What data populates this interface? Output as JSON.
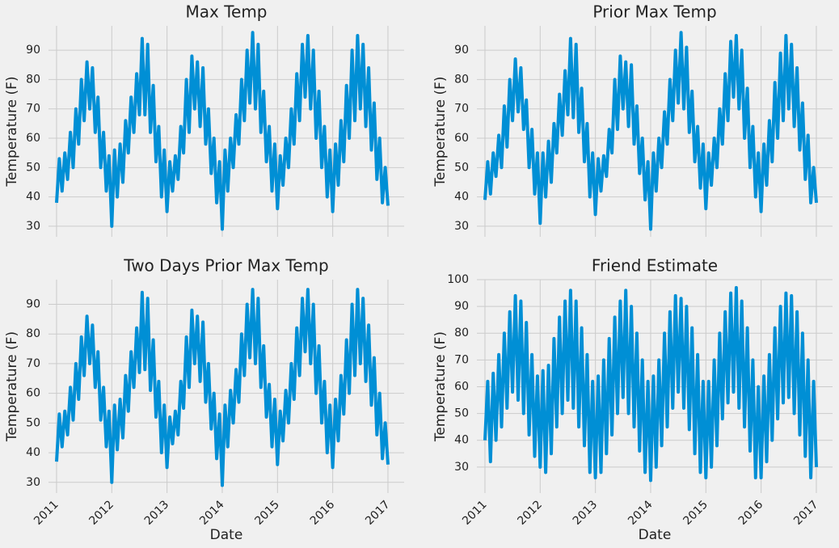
{
  "chart_data": [
    {
      "type": "line",
      "title": "Max Temp",
      "ylabel": "Temperature (F)",
      "x": [
        2011.0,
        2011.05,
        2011.1,
        2011.15,
        2011.2,
        2011.25,
        2011.3,
        2011.35,
        2011.4,
        2011.45,
        2011.5,
        2011.55,
        2011.6,
        2011.65,
        2011.7,
        2011.75,
        2011.8,
        2011.85,
        2011.9,
        2011.95,
        2012.0,
        2012.05,
        2012.1,
        2012.15,
        2012.2,
        2012.25,
        2012.3,
        2012.35,
        2012.4,
        2012.45,
        2012.5,
        2012.55,
        2012.6,
        2012.65,
        2012.7,
        2012.75,
        2012.8,
        2012.85,
        2012.9,
        2012.95,
        2013.0,
        2013.05,
        2013.1,
        2013.15,
        2013.2,
        2013.25,
        2013.3,
        2013.35,
        2013.4,
        2013.45,
        2013.5,
        2013.55,
        2013.6,
        2013.65,
        2013.7,
        2013.75,
        2013.8,
        2013.85,
        2013.9,
        2013.95,
        2014.0,
        2014.05,
        2014.1,
        2014.15,
        2014.2,
        2014.25,
        2014.3,
        2014.35,
        2014.4,
        2014.45,
        2014.5,
        2014.55,
        2014.6,
        2014.65,
        2014.7,
        2014.75,
        2014.8,
        2014.85,
        2014.9,
        2014.95,
        2015.0,
        2015.05,
        2015.1,
        2015.15,
        2015.2,
        2015.25,
        2015.3,
        2015.35,
        2015.4,
        2015.45,
        2015.5,
        2015.55,
        2015.6,
        2015.65,
        2015.7,
        2015.75,
        2015.8,
        2015.85,
        2015.9,
        2015.95,
        2016.0,
        2016.05,
        2016.1,
        2016.15,
        2016.2,
        2016.25,
        2016.3,
        2016.35,
        2016.4,
        2016.45,
        2016.5,
        2016.55,
        2016.6,
        2016.65,
        2016.7,
        2016.75,
        2016.8,
        2016.85,
        2016.9,
        2016.95,
        2017.0
      ],
      "series": [
        {
          "name": "Max Temp",
          "color": "#008fd5",
          "values": [
            38,
            53,
            42,
            55,
            46,
            62,
            50,
            70,
            58,
            80,
            66,
            86,
            70,
            84,
            62,
            74,
            50,
            62,
            42,
            54,
            30,
            56,
            40,
            58,
            45,
            66,
            55,
            74,
            62,
            82,
            68,
            94,
            68,
            92,
            62,
            78,
            52,
            64,
            40,
            56,
            35,
            52,
            42,
            54,
            46,
            64,
            55,
            80,
            62,
            88,
            70,
            86,
            64,
            84,
            58,
            70,
            48,
            60,
            38,
            52,
            29,
            56,
            42,
            60,
            50,
            68,
            58,
            80,
            66,
            90,
            72,
            96,
            70,
            92,
            62,
            76,
            52,
            64,
            42,
            58,
            36,
            54,
            44,
            60,
            50,
            70,
            58,
            82,
            66,
            92,
            74,
            95,
            70,
            90,
            60,
            76,
            50,
            64,
            40,
            56,
            35,
            58,
            44,
            66,
            52,
            78,
            60,
            90,
            66,
            95,
            70,
            92,
            64,
            84,
            56,
            72,
            46,
            60,
            38,
            50,
            37
          ]
        }
      ],
      "xlim": [
        2010.854,
        2017.293
      ],
      "xticks": [
        2011,
        2012,
        2013,
        2014,
        2015,
        2016,
        2017
      ],
      "ylim": [
        26.4,
        98.3
      ],
      "yticks": [
        30,
        40,
        50,
        60,
        70,
        80,
        90
      ],
      "grid": true
    },
    {
      "type": "line",
      "title": "Prior Max Temp",
      "ylabel": "Temperature (F)",
      "x": [
        2011.0,
        2011.05,
        2011.1,
        2011.15,
        2011.2,
        2011.25,
        2011.3,
        2011.35,
        2011.4,
        2011.45,
        2011.5,
        2011.55,
        2011.6,
        2011.65,
        2011.7,
        2011.75,
        2011.8,
        2011.85,
        2011.9,
        2011.95,
        2012.0,
        2012.05,
        2012.1,
        2012.15,
        2012.2,
        2012.25,
        2012.3,
        2012.35,
        2012.4,
        2012.45,
        2012.5,
        2012.55,
        2012.6,
        2012.65,
        2012.7,
        2012.75,
        2012.8,
        2012.85,
        2012.9,
        2012.95,
        2013.0,
        2013.05,
        2013.1,
        2013.15,
        2013.2,
        2013.25,
        2013.3,
        2013.35,
        2013.4,
        2013.45,
        2013.5,
        2013.55,
        2013.6,
        2013.65,
        2013.7,
        2013.75,
        2013.8,
        2013.85,
        2013.9,
        2013.95,
        2014.0,
        2014.05,
        2014.1,
        2014.15,
        2014.2,
        2014.25,
        2014.3,
        2014.35,
        2014.4,
        2014.45,
        2014.5,
        2014.55,
        2014.6,
        2014.65,
        2014.7,
        2014.75,
        2014.8,
        2014.85,
        2014.9,
        2014.95,
        2015.0,
        2015.05,
        2015.1,
        2015.15,
        2015.2,
        2015.25,
        2015.3,
        2015.35,
        2015.4,
        2015.45,
        2015.5,
        2015.55,
        2015.6,
        2015.65,
        2015.7,
        2015.75,
        2015.8,
        2015.85,
        2015.9,
        2015.95,
        2016.0,
        2016.05,
        2016.1,
        2016.15,
        2016.2,
        2016.25,
        2016.3,
        2016.35,
        2016.4,
        2016.45,
        2016.5,
        2016.55,
        2016.6,
        2016.65,
        2016.7,
        2016.75,
        2016.8,
        2016.85,
        2016.9,
        2016.95,
        2017.0
      ],
      "series": [
        {
          "name": "Prior Max Temp",
          "color": "#008fd5",
          "values": [
            39,
            52,
            41,
            55,
            47,
            61,
            50,
            71,
            57,
            80,
            66,
            87,
            69,
            84,
            63,
            73,
            50,
            63,
            41,
            55,
            31,
            55,
            40,
            59,
            45,
            65,
            55,
            75,
            61,
            83,
            68,
            94,
            67,
            92,
            62,
            77,
            52,
            65,
            40,
            55,
            34,
            53,
            42,
            54,
            47,
            63,
            55,
            80,
            63,
            88,
            70,
            86,
            64,
            85,
            58,
            71,
            48,
            60,
            39,
            52,
            29,
            55,
            42,
            60,
            50,
            69,
            58,
            80,
            66,
            90,
            72,
            96,
            70,
            91,
            62,
            76,
            52,
            64,
            43,
            58,
            36,
            55,
            44,
            60,
            50,
            70,
            58,
            82,
            66,
            93,
            74,
            95,
            70,
            90,
            60,
            77,
            50,
            64,
            40,
            55,
            35,
            58,
            44,
            66,
            52,
            79,
            60,
            89,
            66,
            95,
            70,
            92,
            64,
            84,
            56,
            72,
            46,
            61,
            38,
            50,
            38
          ]
        }
      ],
      "xlim": [
        2010.854,
        2017.293
      ],
      "xticks": [
        2011,
        2012,
        2013,
        2014,
        2015,
        2016,
        2017
      ],
      "ylim": [
        26.4,
        98.3
      ],
      "yticks": [
        30,
        40,
        50,
        60,
        70,
        80,
        90
      ],
      "grid": true
    },
    {
      "type": "line",
      "title": "Two Days Prior Max Temp",
      "ylabel": "Temperature (F)",
      "xlabel": "Date",
      "x": [
        2011.0,
        2011.05,
        2011.1,
        2011.15,
        2011.2,
        2011.25,
        2011.3,
        2011.35,
        2011.4,
        2011.45,
        2011.5,
        2011.55,
        2011.6,
        2011.65,
        2011.7,
        2011.75,
        2011.8,
        2011.85,
        2011.9,
        2011.95,
        2012.0,
        2012.05,
        2012.1,
        2012.15,
        2012.2,
        2012.25,
        2012.3,
        2012.35,
        2012.4,
        2012.45,
        2012.5,
        2012.55,
        2012.6,
        2012.65,
        2012.7,
        2012.75,
        2012.8,
        2012.85,
        2012.9,
        2012.95,
        2013.0,
        2013.05,
        2013.1,
        2013.15,
        2013.2,
        2013.25,
        2013.3,
        2013.35,
        2013.4,
        2013.45,
        2013.5,
        2013.55,
        2013.6,
        2013.65,
        2013.7,
        2013.75,
        2013.8,
        2013.85,
        2013.9,
        2013.95,
        2014.0,
        2014.05,
        2014.1,
        2014.15,
        2014.2,
        2014.25,
        2014.3,
        2014.35,
        2014.4,
        2014.45,
        2014.5,
        2014.55,
        2014.6,
        2014.65,
        2014.7,
        2014.75,
        2014.8,
        2014.85,
        2014.9,
        2014.95,
        2015.0,
        2015.05,
        2015.1,
        2015.15,
        2015.2,
        2015.25,
        2015.3,
        2015.35,
        2015.4,
        2015.45,
        2015.5,
        2015.55,
        2015.6,
        2015.65,
        2015.7,
        2015.75,
        2015.8,
        2015.85,
        2015.9,
        2015.95,
        2016.0,
        2016.05,
        2016.1,
        2016.15,
        2016.2,
        2016.25,
        2016.3,
        2016.35,
        2016.4,
        2016.45,
        2016.5,
        2016.55,
        2016.6,
        2016.65,
        2016.7,
        2016.75,
        2016.8,
        2016.85,
        2016.9,
        2016.95,
        2017.0
      ],
      "series": [
        {
          "name": "Two Days Prior Max Temp",
          "color": "#008fd5",
          "values": [
            37,
            53,
            42,
            54,
            46,
            62,
            51,
            70,
            58,
            79,
            66,
            86,
            70,
            83,
            62,
            74,
            51,
            62,
            42,
            54,
            30,
            56,
            41,
            58,
            45,
            66,
            54,
            74,
            62,
            82,
            67,
            94,
            68,
            92,
            61,
            78,
            52,
            64,
            40,
            56,
            35,
            52,
            43,
            54,
            46,
            64,
            55,
            79,
            62,
            88,
            70,
            86,
            64,
            84,
            57,
            70,
            48,
            60,
            38,
            53,
            29,
            56,
            42,
            61,
            50,
            68,
            57,
            80,
            66,
            90,
            72,
            95,
            70,
            92,
            62,
            76,
            52,
            63,
            42,
            58,
            36,
            54,
            44,
            61,
            50,
            70,
            58,
            82,
            66,
            92,
            74,
            95,
            70,
            90,
            60,
            76,
            50,
            64,
            40,
            56,
            35,
            58,
            44,
            66,
            53,
            78,
            60,
            90,
            66,
            95,
            70,
            92,
            64,
            83,
            56,
            72,
            46,
            60,
            38,
            50,
            36
          ]
        }
      ],
      "xlim": [
        2010.854,
        2017.293
      ],
      "xticks": [
        2011,
        2012,
        2013,
        2014,
        2015,
        2016,
        2017
      ],
      "ylim": [
        26.4,
        98.3
      ],
      "yticks": [
        30,
        40,
        50,
        60,
        70,
        80,
        90
      ],
      "grid": true
    },
    {
      "type": "line",
      "title": "Friend Estimate",
      "ylabel": "Temperature (F)",
      "xlabel": "Date",
      "x": [
        2011.0,
        2011.05,
        2011.1,
        2011.15,
        2011.2,
        2011.25,
        2011.3,
        2011.35,
        2011.4,
        2011.45,
        2011.5,
        2011.55,
        2011.6,
        2011.65,
        2011.7,
        2011.75,
        2011.8,
        2011.85,
        2011.9,
        2011.95,
        2012.0,
        2012.05,
        2012.1,
        2012.15,
        2012.2,
        2012.25,
        2012.3,
        2012.35,
        2012.4,
        2012.45,
        2012.5,
        2012.55,
        2012.6,
        2012.65,
        2012.7,
        2012.75,
        2012.8,
        2012.85,
        2012.9,
        2012.95,
        2013.0,
        2013.05,
        2013.1,
        2013.15,
        2013.2,
        2013.25,
        2013.3,
        2013.35,
        2013.4,
        2013.45,
        2013.5,
        2013.55,
        2013.6,
        2013.65,
        2013.7,
        2013.75,
        2013.8,
        2013.85,
        2013.9,
        2013.95,
        2014.0,
        2014.05,
        2014.1,
        2014.15,
        2014.2,
        2014.25,
        2014.3,
        2014.35,
        2014.4,
        2014.45,
        2014.5,
        2014.55,
        2014.6,
        2014.65,
        2014.7,
        2014.75,
        2014.8,
        2014.85,
        2014.9,
        2014.95,
        2015.0,
        2015.05,
        2015.1,
        2015.15,
        2015.2,
        2015.25,
        2015.3,
        2015.35,
        2015.4,
        2015.45,
        2015.5,
        2015.55,
        2015.6,
        2015.65,
        2015.7,
        2015.75,
        2015.8,
        2015.85,
        2015.9,
        2015.95,
        2016.0,
        2016.05,
        2016.1,
        2016.15,
        2016.2,
        2016.25,
        2016.3,
        2016.35,
        2016.4,
        2016.45,
        2016.5,
        2016.55,
        2016.6,
        2016.65,
        2016.7,
        2016.75,
        2016.8,
        2016.85,
        2016.9,
        2016.95,
        2017.0
      ],
      "series": [
        {
          "name": "Friend Estimate",
          "color": "#008fd5",
          "values": [
            40,
            62,
            32,
            65,
            40,
            72,
            45,
            80,
            52,
            88,
            58,
            94,
            55,
            92,
            50,
            84,
            42,
            72,
            34,
            64,
            30,
            66,
            28,
            68,
            35,
            78,
            45,
            86,
            50,
            92,
            55,
            96,
            52,
            92,
            45,
            82,
            38,
            72,
            28,
            62,
            26,
            64,
            28,
            70,
            35,
            78,
            42,
            86,
            50,
            92,
            56,
            96,
            50,
            90,
            45,
            80,
            36,
            70,
            28,
            62,
            25,
            64,
            30,
            70,
            38,
            80,
            45,
            88,
            52,
            94,
            58,
            93,
            52,
            90,
            44,
            82,
            35,
            72,
            28,
            62,
            26,
            62,
            30,
            70,
            38,
            80,
            48,
            88,
            54,
            95,
            58,
            97,
            52,
            92,
            45,
            82,
            36,
            70,
            26,
            60,
            26,
            64,
            32,
            72,
            40,
            82,
            48,
            90,
            54,
            95,
            56,
            94,
            50,
            88,
            42,
            80,
            34,
            70,
            26,
            62,
            30
          ]
        }
      ],
      "xlim": [
        2010.854,
        2017.293
      ],
      "xticks": [
        2011,
        2012,
        2013,
        2014,
        2015,
        2016,
        2017
      ],
      "ylim": [
        20.3,
        100
      ],
      "yticks": [
        30,
        40,
        50,
        60,
        70,
        80,
        90,
        100
      ],
      "grid": true
    }
  ]
}
